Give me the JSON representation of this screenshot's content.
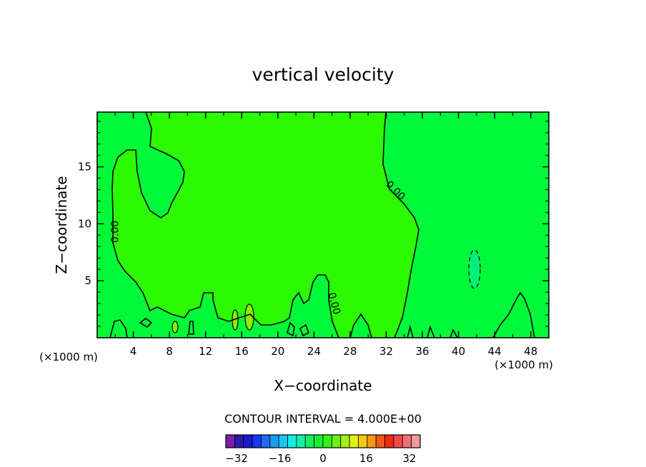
{
  "chart_data": {
    "type": "contour",
    "title": "vertical velocity",
    "xlabel": "X−coordinate",
    "ylabel": "Z−coordinate",
    "x_unit_left": "(×1000 m)",
    "x_unit_right": "(×1000 m)",
    "xlim": [
      0,
      50
    ],
    "ylim": [
      0,
      19.8
    ],
    "xticks": [
      4,
      8,
      12,
      16,
      20,
      24,
      28,
      32,
      36,
      40,
      44,
      48
    ],
    "yticks": [
      5,
      10,
      15
    ],
    "contour_interval_label": "CONTOUR INTERVAL = 4.000E+00",
    "contour_labels": [
      {
        "text": "0.00",
        "x": 2.0,
        "y": 9.3,
        "angle": -90
      },
      {
        "text": "0.00",
        "x": 33.0,
        "y": 12.9,
        "angle": 45
      },
      {
        "text": "0.00",
        "x": 26.2,
        "y": 3.0,
        "angle": 75
      }
    ],
    "colorbar": {
      "min": -36,
      "max": 36,
      "step": 4,
      "tick_labels": [
        "−32",
        "−16",
        "0",
        "16",
        "32"
      ],
      "tick_values": [
        -32,
        -16,
        0,
        16,
        32
      ],
      "colors": [
        "#7a1fa8",
        "#2d1aa8",
        "#1a1acf",
        "#1439ef",
        "#1e6af0",
        "#1a9cf0",
        "#14c8ee",
        "#14eee0",
        "#14f0a6",
        "#14f060",
        "#14f030",
        "#36f014",
        "#6ef014",
        "#a6f014",
        "#dff014",
        "#f0cc14",
        "#f09a14",
        "#f05a14",
        "#f02814",
        "#f04a4a",
        "#f07272",
        "#f09a9a"
      ]
    },
    "fill_colors": {
      "near_zero_positive": "#2bfa00",
      "near_zero_negative": "#00fa3a",
      "weak_negative": "#00f07a",
      "weak_positive": "#88f000"
    }
  }
}
